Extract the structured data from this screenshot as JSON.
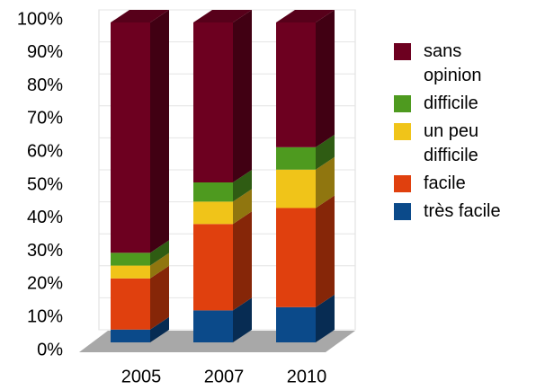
{
  "chart_data": {
    "type": "bar3d_stacked",
    "categories": [
      "2005",
      "2007",
      "2010"
    ],
    "series": [
      {
        "name": "très facile",
        "color": "#0b4a8a",
        "values": [
          4,
          10,
          11
        ]
      },
      {
        "name": "facile",
        "color": "#e0400e",
        "values": [
          16,
          27,
          31
        ]
      },
      {
        "name": "un peu difficile",
        "color": "#f0c419",
        "values": [
          4,
          7,
          12
        ]
      },
      {
        "name": "difficile",
        "color": "#4e9a1f",
        "values": [
          4,
          6,
          7
        ]
      },
      {
        "name": "sans opinion",
        "color": "#6d0020",
        "values": [
          72,
          50,
          39
        ]
      }
    ],
    "ylim": [
      0,
      100
    ],
    "yticks": [
      {
        "value": 0,
        "label": "0%"
      },
      {
        "value": 10,
        "label": "10%"
      },
      {
        "value": 20,
        "label": "20%"
      },
      {
        "value": 30,
        "label": "30%"
      },
      {
        "value": 40,
        "label": "40%"
      },
      {
        "value": 50,
        "label": "50%"
      },
      {
        "value": 60,
        "label": "60%"
      },
      {
        "value": 70,
        "label": "70%"
      },
      {
        "value": 80,
        "label": "80%"
      },
      {
        "value": 90,
        "label": "90%"
      },
      {
        "value": 100,
        "label": "100%"
      }
    ],
    "grid": true,
    "legend": "right"
  }
}
